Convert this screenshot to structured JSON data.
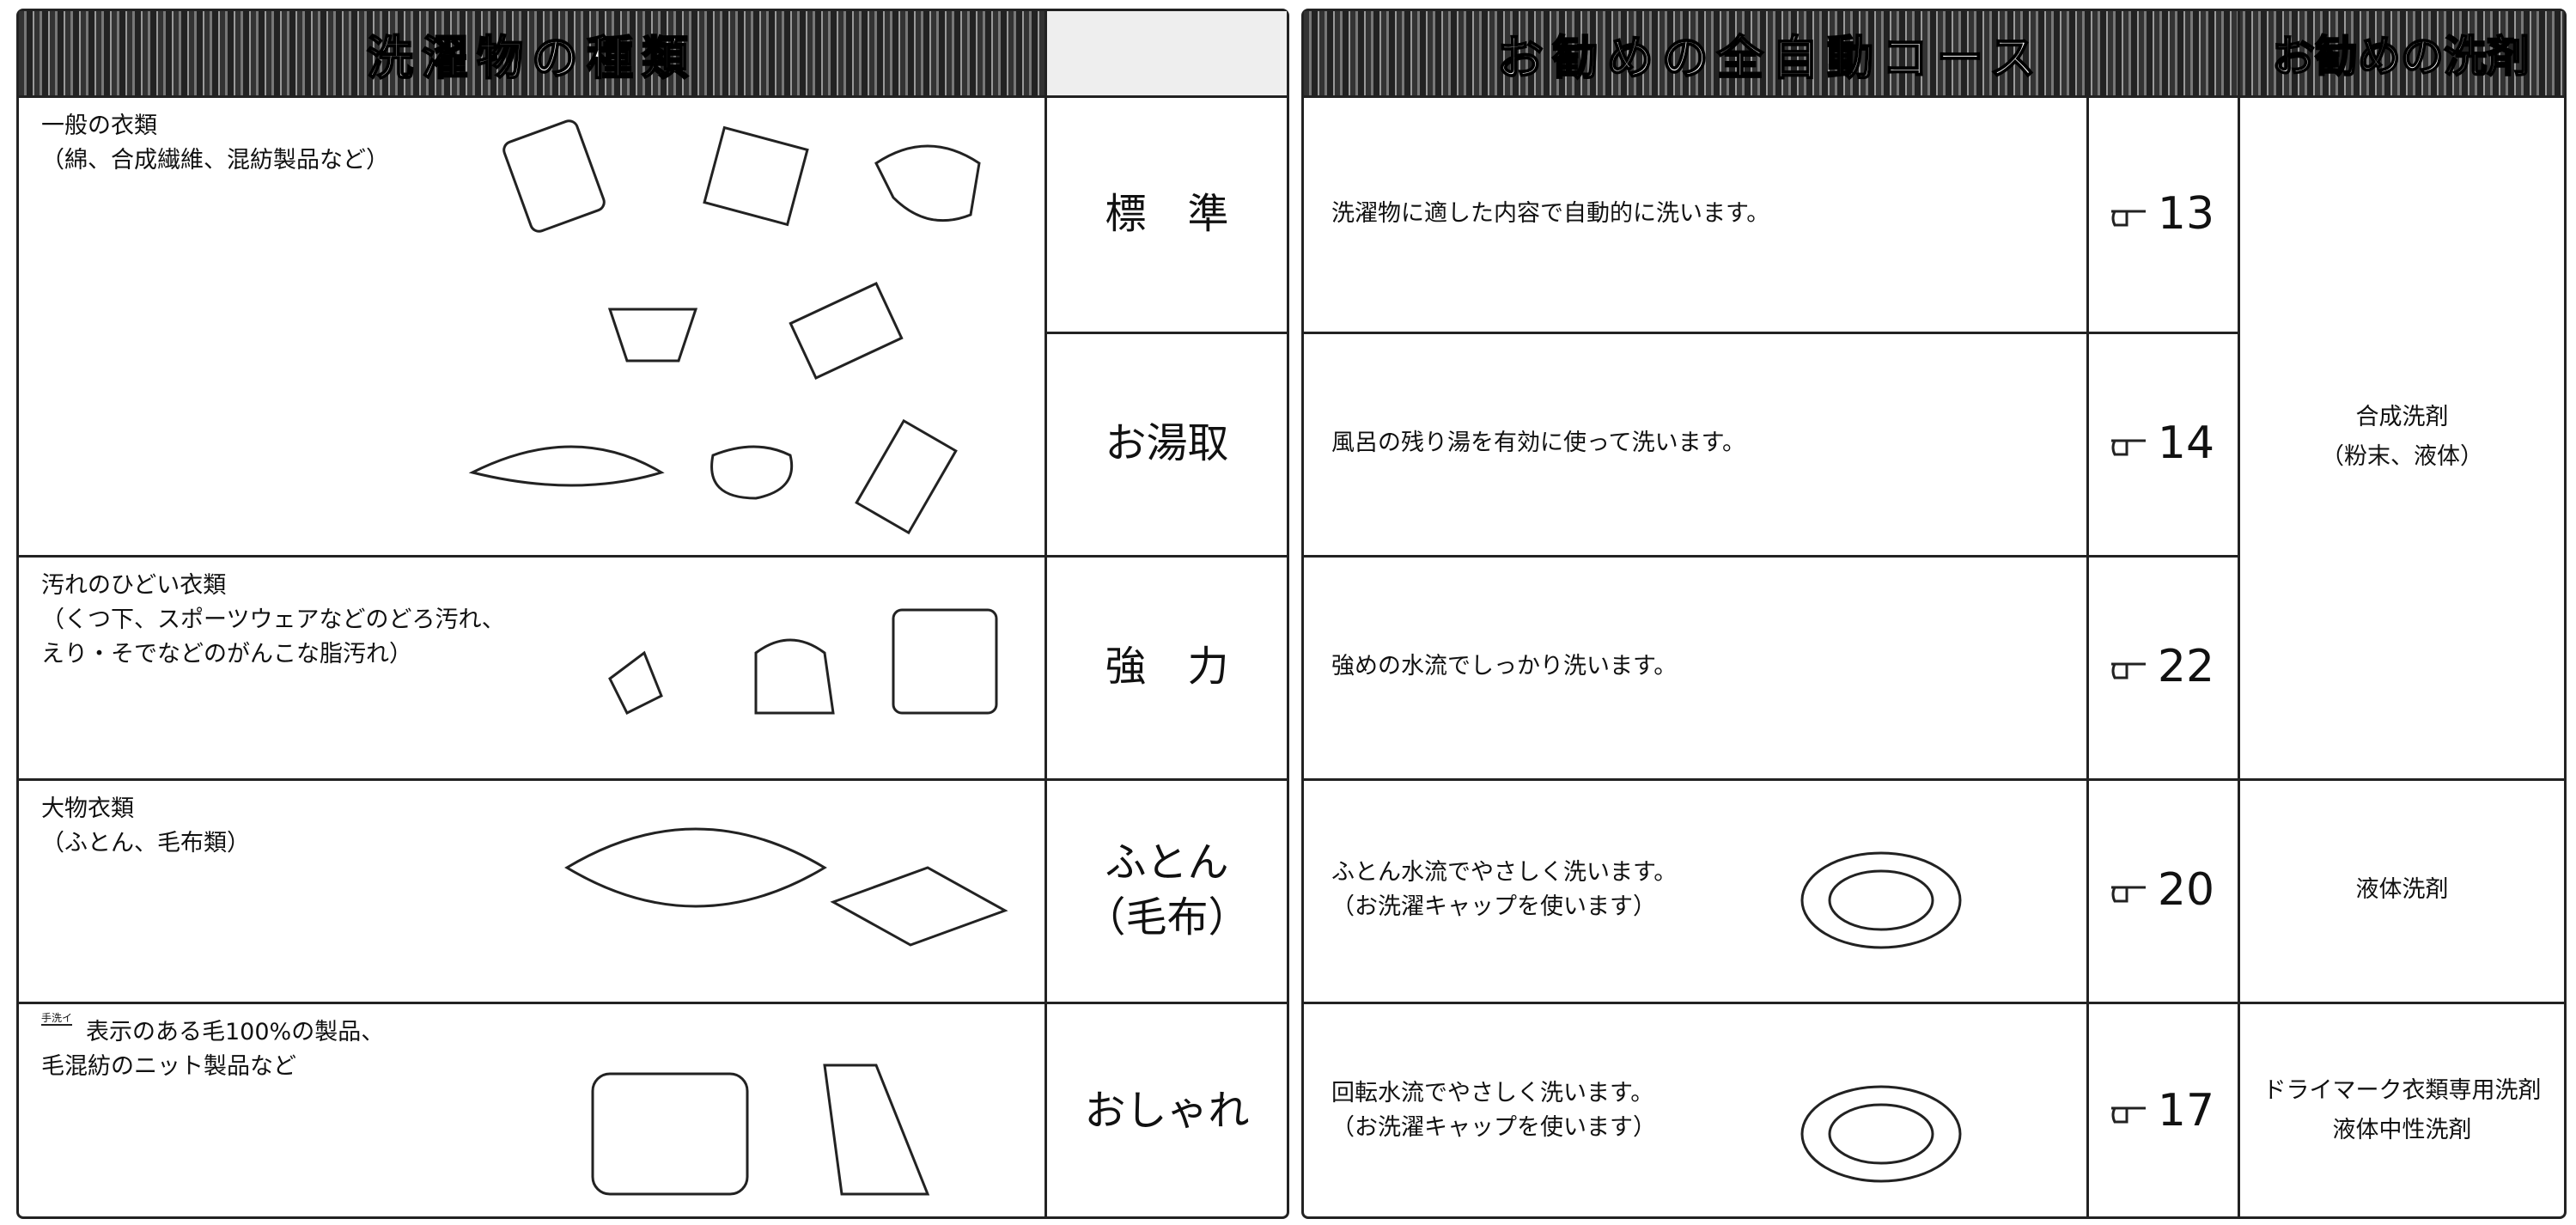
{
  "header": {
    "laundry_title": "洗濯物の種類",
    "course_title": "お勧めの全自動コース",
    "detergent_title": "お勧めの洗剤"
  },
  "laundry": [
    {
      "lines": [
        "一般の衣類",
        "（綿、合成繊維、混紡製品など）"
      ]
    },
    {
      "lines": [
        "汚れのひどい衣類",
        "（くつ下、スポーツウェアなどのどろ汚れ、",
        "えり・そでなどのがんこな脂汚れ）"
      ]
    },
    {
      "lines": [
        "大物衣類",
        "（ふとん、毛布類）"
      ]
    },
    {
      "icon": "手洗イ",
      "lines": [
        "表示のある毛100%の製品、",
        "毛混紡のニット製品など"
      ]
    }
  ],
  "courses": [
    {
      "name": [
        "標　準"
      ],
      "description": [
        "洗濯物に適した内容で自動的に洗います。"
      ],
      "page": "13"
    },
    {
      "name": [
        "お湯取"
      ],
      "description": [
        "風呂の残り湯を有効に使って洗います。"
      ],
      "page": "14"
    },
    {
      "name": [
        "強　力"
      ],
      "description": [
        "強めの水流でしっかり洗います。"
      ],
      "page": "22"
    },
    {
      "name": [
        "ふとん",
        "（毛布）"
      ],
      "description": [
        "ふとん水流でやさしく洗います。",
        "（お洗濯キャップを使います）"
      ],
      "page": "20"
    },
    {
      "name": [
        "おしゃれ"
      ],
      "description": [
        "回転水流でやさしく洗います。",
        "（お洗濯キャップを使います）"
      ],
      "page": "17"
    }
  ],
  "detergents": [
    {
      "lines": [
        "合成洗剤",
        "（粉末、液体）"
      ]
    },
    {
      "lines": [
        "液体洗剤"
      ]
    },
    {
      "lines": [
        "ドライマーク衣類専用洗剤",
        "液体中性洗剤"
      ]
    }
  ]
}
